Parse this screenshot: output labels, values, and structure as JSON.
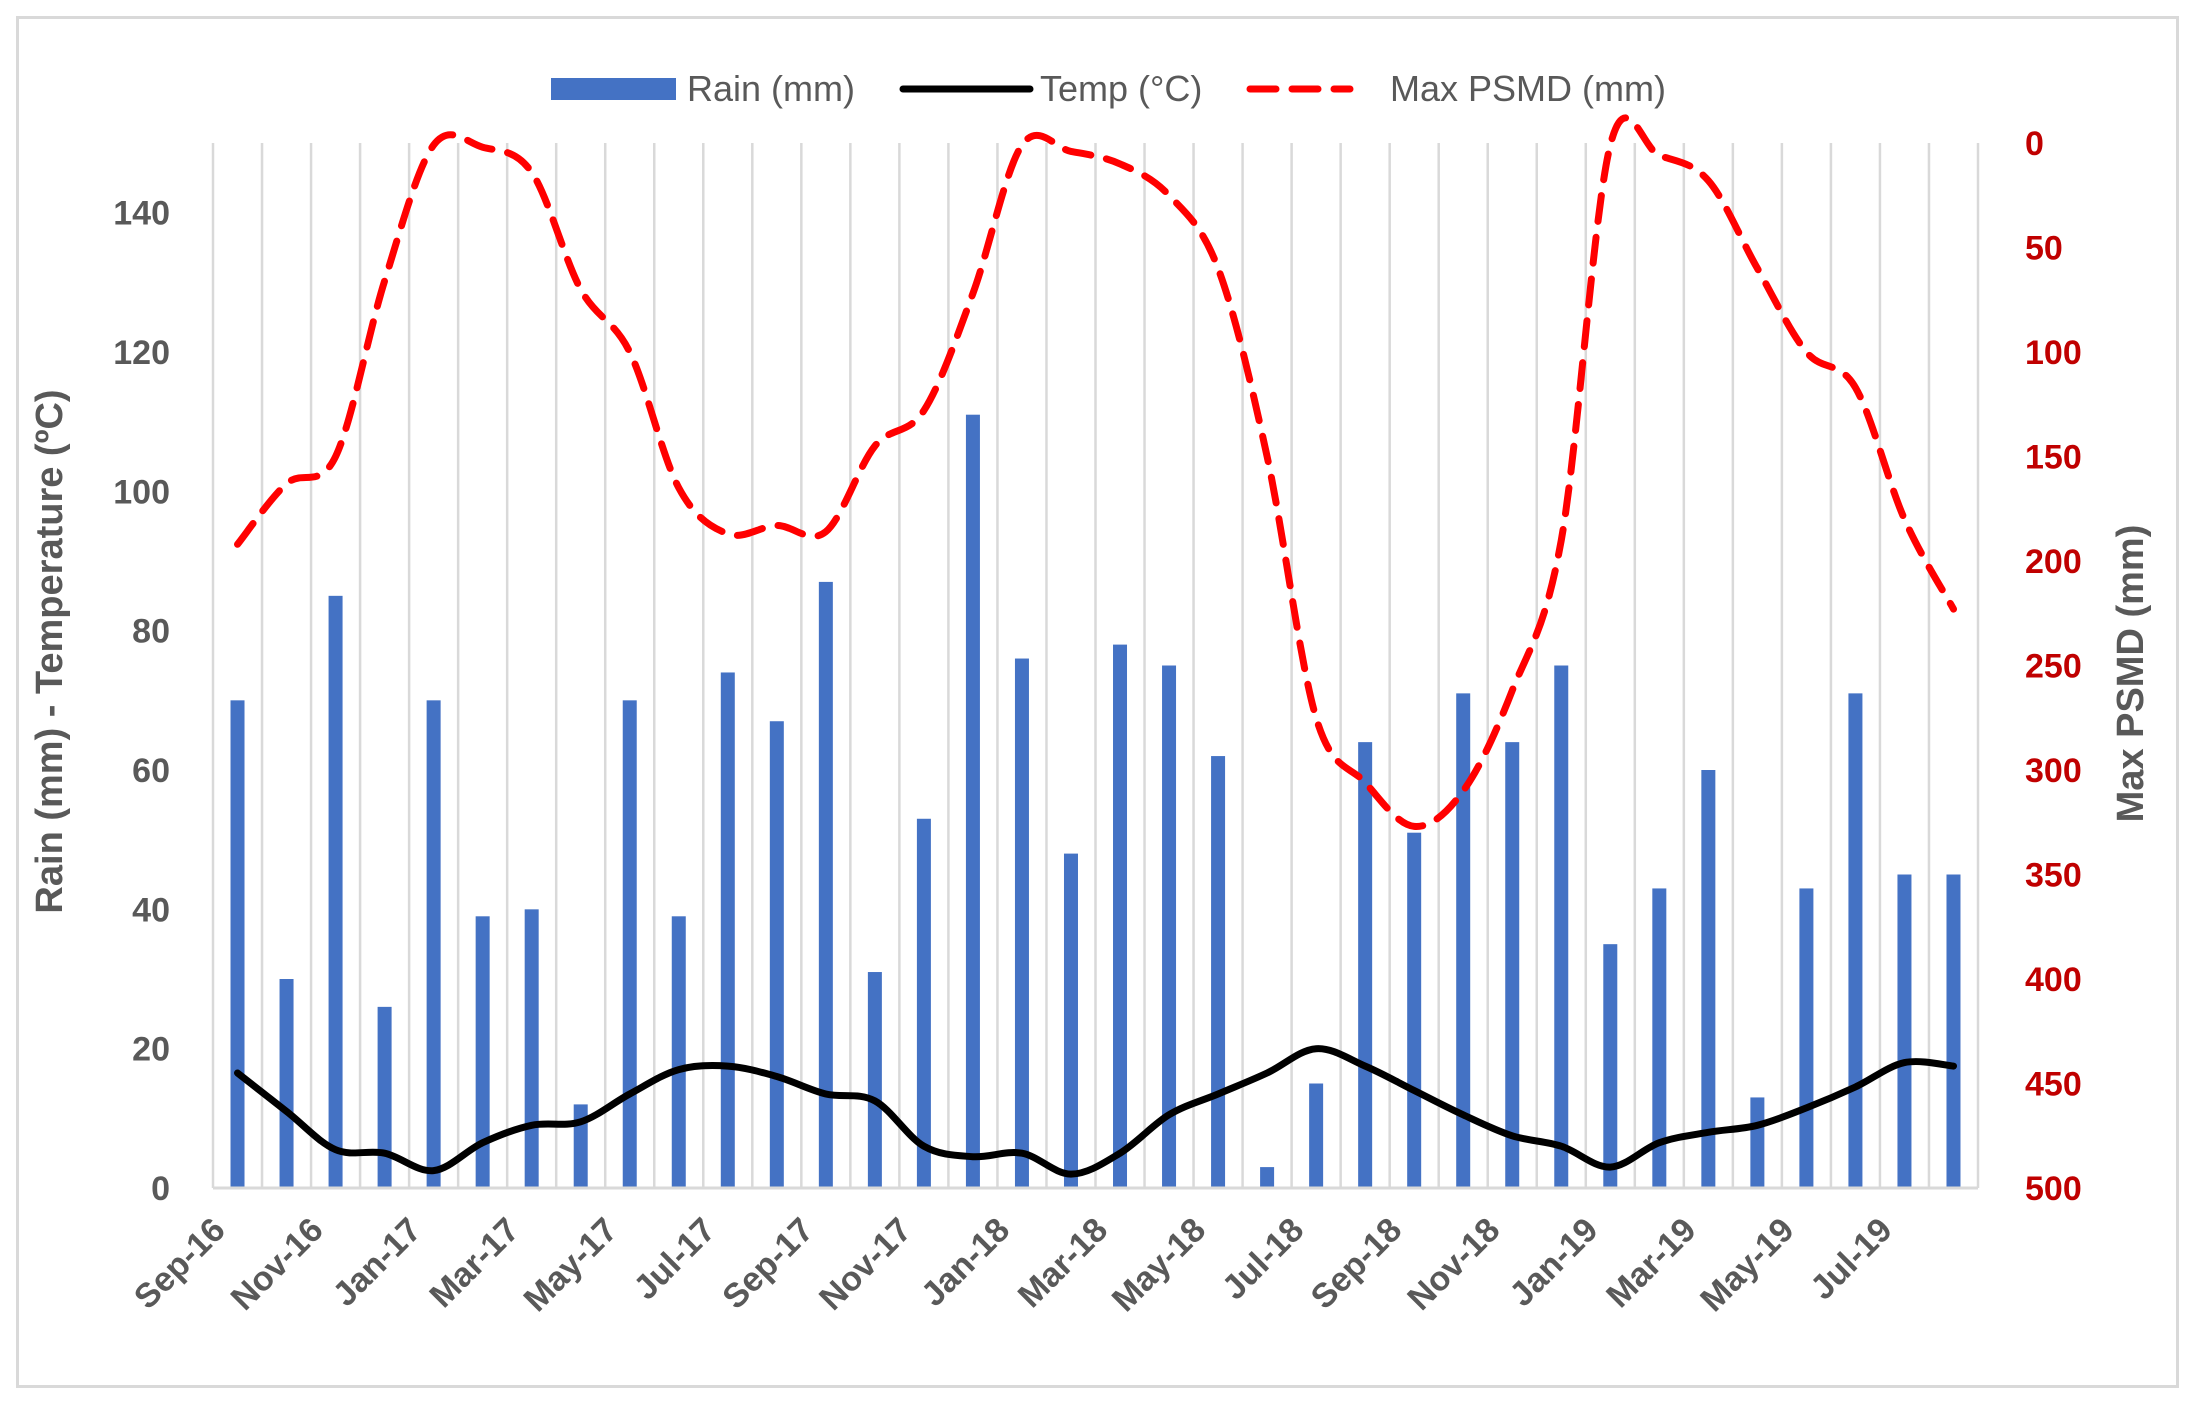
{
  "chart_data": {
    "type": "bar",
    "categories": [
      "Sep-16",
      "Oct-16",
      "Nov-16",
      "Dec-16",
      "Jan-17",
      "Feb-17",
      "Mar-17",
      "Apr-17",
      "May-17",
      "Jun-17",
      "Jul-17",
      "Aug-17",
      "Sep-17",
      "Oct-17",
      "Nov-17",
      "Dec-17",
      "Jan-18",
      "Feb-18",
      "Mar-18",
      "Apr-18",
      "May-18",
      "Jun-18",
      "Jul-18",
      "Aug-18",
      "Sep-18",
      "Oct-18",
      "Nov-18",
      "Dec-18",
      "Jan-19",
      "Feb-19",
      "Mar-19",
      "Apr-19",
      "May-19",
      "Jun-19",
      "Jul-19",
      "Aug-19"
    ],
    "x_tick_labels": [
      "Sep-16",
      "Nov-16",
      "Jan-17",
      "Mar-17",
      "May-17",
      "Jul-17",
      "Sep-17",
      "Nov-17",
      "Jan-18",
      "Mar-18",
      "May-18",
      "Jul-18",
      "Sep-18",
      "Nov-18",
      "Jan-19",
      "Mar-19",
      "May-19",
      "Jul-19"
    ],
    "series": [
      {
        "name": "Rain (mm)",
        "type": "bar",
        "axis": "left",
        "color": "#4472c4",
        "values": [
          70,
          30,
          85,
          26,
          70,
          39,
          40,
          12,
          70,
          39,
          74,
          67,
          87,
          31,
          53,
          111,
          76,
          48,
          78,
          75,
          62,
          3,
          15,
          64,
          51,
          71,
          64,
          75,
          35,
          43,
          60,
          13,
          43,
          71,
          45,
          45
        ]
      },
      {
        "name": "Temp (°C)",
        "type": "line",
        "axis": "left",
        "color": "#000000",
        "values": [
          16.5,
          11,
          5.5,
          5,
          2.5,
          6.5,
          9,
          9.5,
          13.5,
          17,
          17.5,
          16,
          13.5,
          12.5,
          6,
          4.5,
          5,
          2,
          5,
          10.5,
          13.5,
          16.5,
          20,
          17.5,
          14,
          10.5,
          7.5,
          6,
          3,
          6.5,
          8,
          9,
          11.5,
          14.5,
          18,
          17.5
        ]
      },
      {
        "name": "Max PSMD (mm)",
        "type": "line",
        "axis": "right",
        "color": "#ff0000",
        "dash": "dashed",
        "values": [
          192,
          163,
          150,
          66,
          1,
          2,
          14,
          70,
          100,
          165,
          187,
          183,
          186,
          145,
          128,
          72,
          1,
          4,
          10,
          25,
          60,
          150,
          275,
          306,
          327,
          310,
          262,
          190,
          1,
          6,
          18,
          60,
          100,
          117,
          180,
          223
        ]
      }
    ],
    "title": "",
    "xlabel": "",
    "ylabel": "Rain (mm)  - Temperature (ºC)",
    "y2label": "Max PSMD (mm)",
    "ylim": [
      0,
      150
    ],
    "yticks": [
      0,
      20,
      40,
      60,
      80,
      100,
      120,
      140
    ],
    "y2lim": [
      500,
      0
    ],
    "y2ticks": [
      0,
      50,
      100,
      150,
      200,
      250,
      300,
      350,
      400,
      450,
      500
    ],
    "y2_inverted": true,
    "grid": "vertical",
    "legend_position": "top"
  }
}
